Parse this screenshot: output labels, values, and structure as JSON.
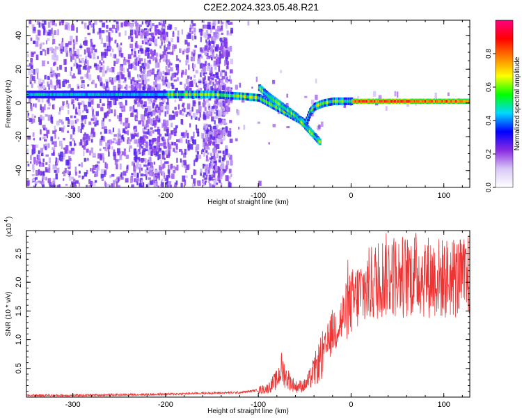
{
  "title": "C2E2.2024.323.05.48.R21",
  "chart_data": [
    {
      "type": "heatmap",
      "xlabel": "Height of straight line (km)",
      "ylabel": "Frequency (Hz)",
      "xlim": [
        -350,
        128
      ],
      "ylim": [
        -50,
        49
      ],
      "xticks": [
        -300,
        -200,
        -100,
        0,
        100
      ],
      "xtick_labels": [
        "-300",
        "-200",
        "-100",
        "0",
        "100"
      ],
      "yticks": [
        -40,
        -20,
        0,
        20,
        40
      ],
      "ytick_labels": [
        "-40",
        "-20",
        "0",
        "20",
        "40"
      ],
      "colorbar": {
        "label": "Normalized spectral amplitude",
        "range": [
          0,
          1
        ],
        "ticks": [
          0.0,
          0.2,
          0.4,
          0.6,
          0.8
        ],
        "tick_labels": [
          "0.0",
          "0.2",
          "0.4",
          "0.6",
          "0.8"
        ],
        "colormap": [
          "#ffffff",
          "#d9c8f7",
          "#8a2be2",
          "#0000ff",
          "#00d8ff",
          "#00ff00",
          "#ffff00",
          "#ff8000",
          "#ff0000",
          "#ff0080"
        ]
      },
      "main_trace": {
        "x": [
          -350,
          -300,
          -250,
          -200,
          -150,
          -120,
          -100,
          -90,
          -80,
          -70,
          -60,
          -50,
          -45,
          -40,
          -30,
          -20,
          0,
          50,
          100,
          128
        ],
        "frequency": [
          5,
          5,
          5,
          5,
          5,
          4,
          3,
          0,
          -3,
          -6,
          -9,
          -12,
          -5,
          -2,
          0,
          1,
          1,
          1,
          1,
          1
        ]
      },
      "secondary_trace": {
        "x": [
          -100,
          -90,
          -80,
          -70,
          -60,
          -50,
          -40,
          -35
        ],
        "frequency": [
          9,
          4,
          0,
          -4,
          -8,
          -14,
          -20,
          -23
        ]
      }
    },
    {
      "type": "line",
      "xlabel": "Height of straight line (km)",
      "ylabel": "SNR (10 * v/v)",
      "multiplier": "(x10",
      "multiplier_exp": "4",
      "xlim": [
        -350,
        128
      ],
      "ylim": [
        0,
        2.9
      ],
      "xticks": [
        -300,
        -200,
        -100,
        0,
        100
      ],
      "xtick_labels": [
        "-300",
        "-200",
        "-100",
        "0",
        "100"
      ],
      "yticks": [
        0.5,
        1.0,
        1.5,
        2.0,
        2.5
      ],
      "ytick_labels": [
        "0.5",
        "1.0",
        "1.5",
        "2.0",
        "2.5"
      ],
      "series": [
        {
          "color": "#ee3333",
          "x": [
            -350,
            -300,
            -250,
            -200,
            -180,
            -150,
            -120,
            -100,
            -90,
            -80,
            -75,
            -70,
            -60,
            -50,
            -45,
            -40,
            -35,
            -30,
            -25,
            -20,
            -15,
            -10,
            -5,
            0,
            10,
            20,
            30,
            40,
            50,
            60,
            70,
            80,
            90,
            100,
            110,
            120,
            128
          ],
          "y": [
            0.03,
            0.03,
            0.04,
            0.05,
            0.06,
            0.07,
            0.08,
            0.12,
            0.15,
            0.3,
            0.5,
            0.35,
            0.18,
            0.2,
            0.3,
            0.45,
            0.6,
            0.75,
            0.95,
            1.15,
            1.25,
            1.35,
            1.5,
            1.65,
            1.8,
            1.95,
            2.05,
            2.15,
            2.1,
            2.1,
            2.15,
            2.1,
            2.1,
            2.05,
            2.1,
            2.05,
            2.1
          ]
        }
      ]
    }
  ]
}
